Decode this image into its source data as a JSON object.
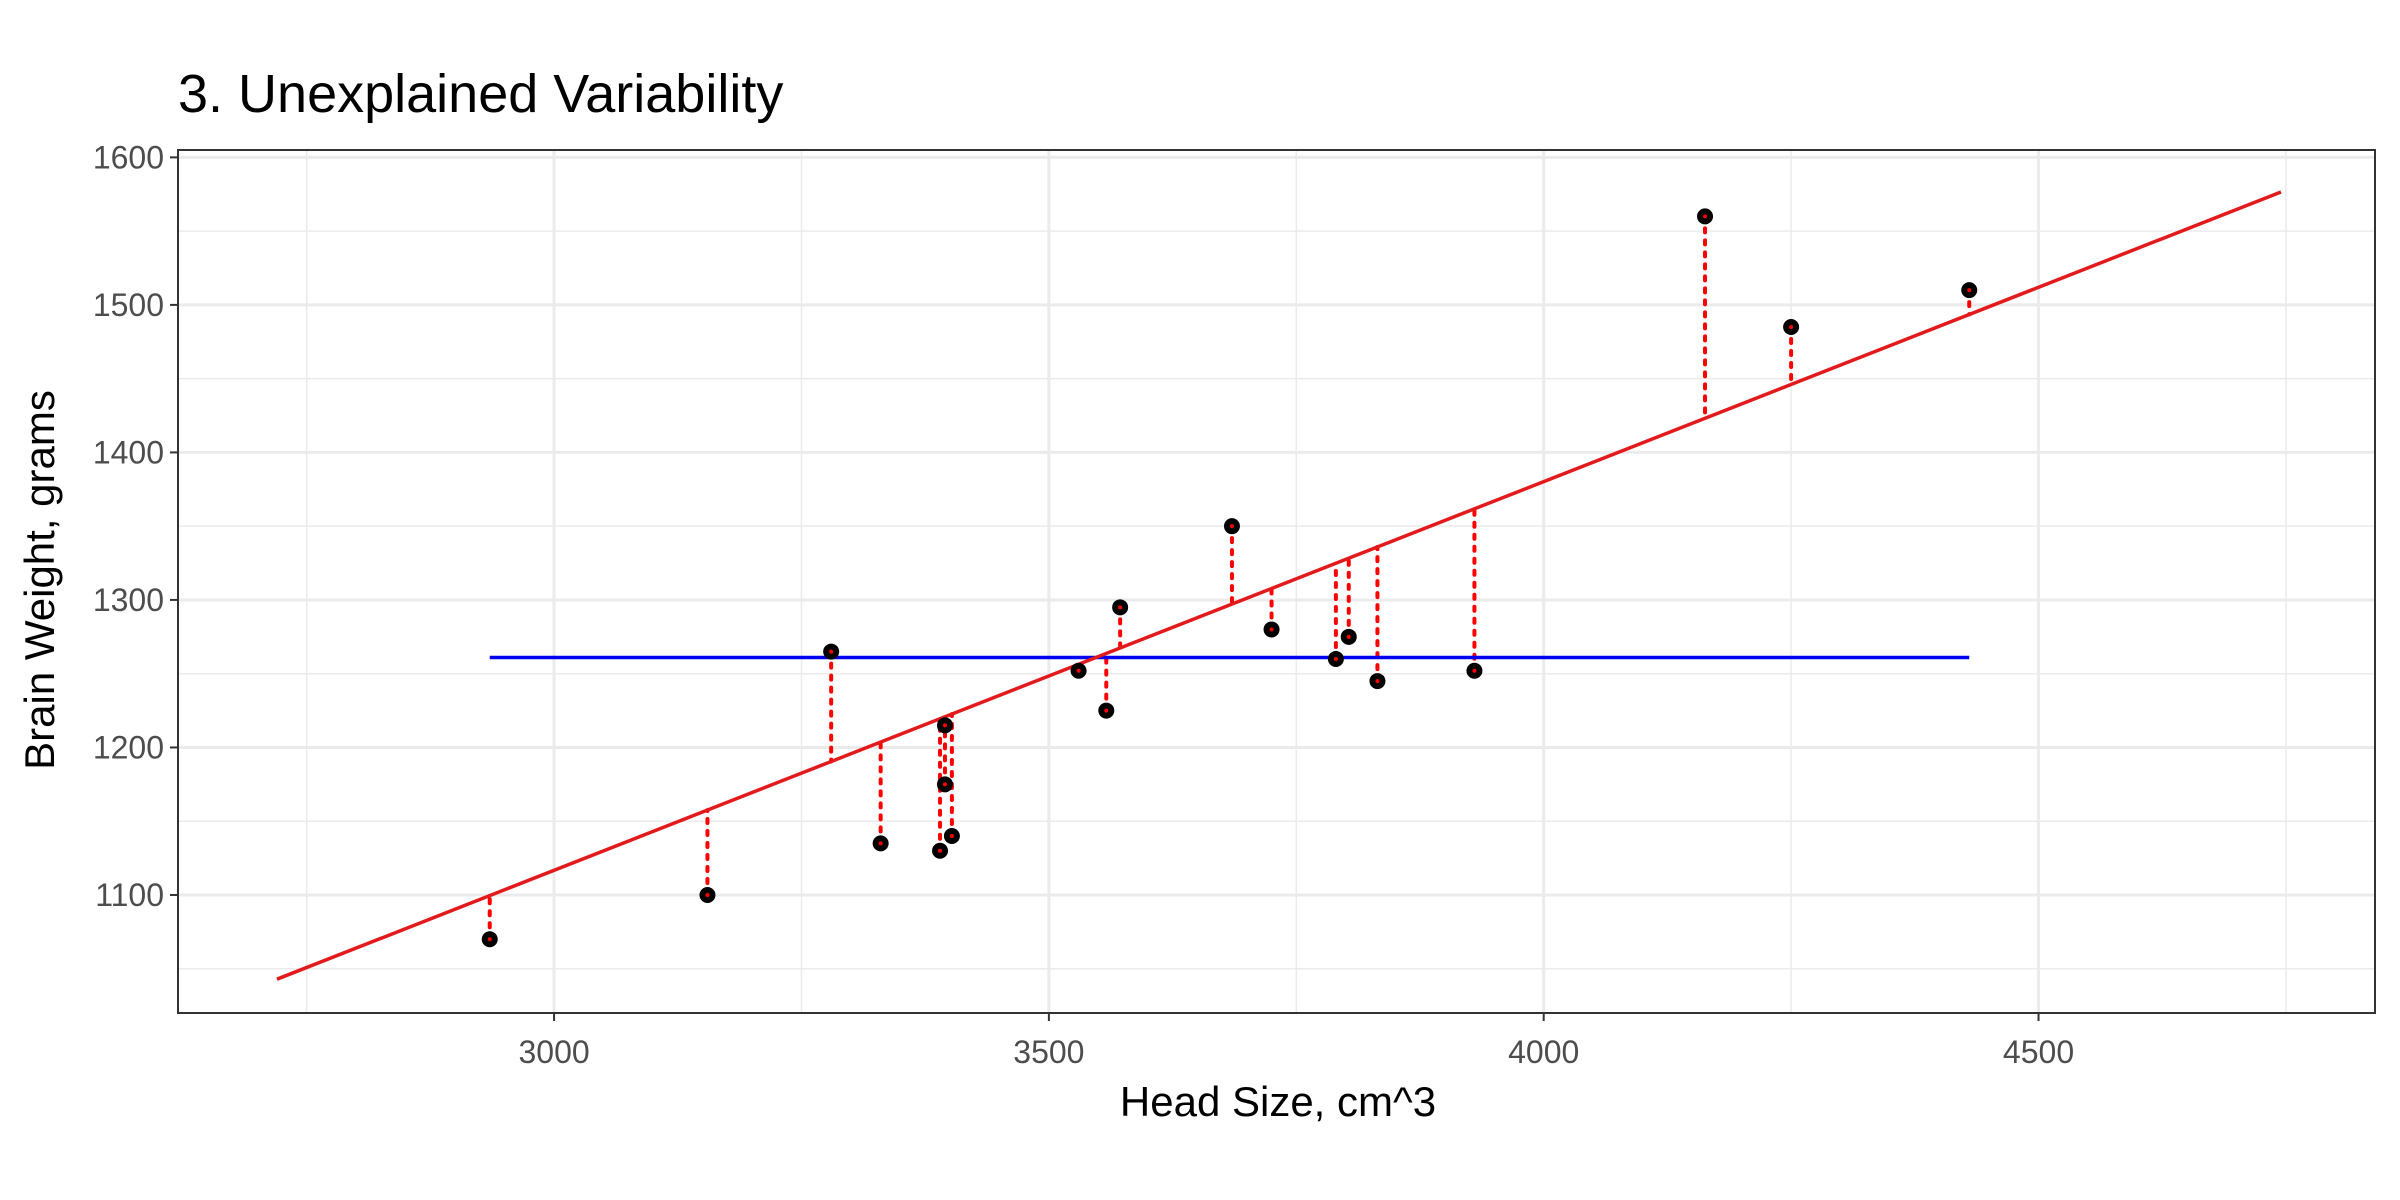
{
  "chart_data": {
    "type": "scatter",
    "title": "3. Unexplained Variability",
    "xlabel": "Head Size, cm^3",
    "ylabel": "Brain Weight, grams",
    "xlim": [
      2620,
      4840
    ],
    "ylim": [
      1020,
      1605
    ],
    "x_ticks": [
      3000,
      3500,
      4000,
      4500
    ],
    "x_minor_ticks": [
      2750,
      3250,
      3750,
      4250,
      4750
    ],
    "y_ticks": [
      1100,
      1200,
      1300,
      1400,
      1500,
      1600
    ],
    "y_minor_ticks": [
      1050,
      1150,
      1250,
      1350,
      1450,
      1550
    ],
    "grid": true,
    "points": [
      {
        "x": 2935,
        "y": 1070
      },
      {
        "x": 3155,
        "y": 1100
      },
      {
        "x": 3280,
        "y": 1265
      },
      {
        "x": 3330,
        "y": 1135
      },
      {
        "x": 3390,
        "y": 1130
      },
      {
        "x": 3395,
        "y": 1215
      },
      {
        "x": 3395,
        "y": 1175
      },
      {
        "x": 3402,
        "y": 1140
      },
      {
        "x": 3530,
        "y": 1252
      },
      {
        "x": 3558,
        "y": 1225
      },
      {
        "x": 3572,
        "y": 1295
      },
      {
        "x": 3685,
        "y": 1350
      },
      {
        "x": 3725,
        "y": 1280
      },
      {
        "x": 3790,
        "y": 1260
      },
      {
        "x": 3803,
        "y": 1275
      },
      {
        "x": 3832,
        "y": 1245
      },
      {
        "x": 3930,
        "y": 1252
      },
      {
        "x": 4163,
        "y": 1560
      },
      {
        "x": 4250,
        "y": 1485
      },
      {
        "x": 4430,
        "y": 1510
      }
    ],
    "regression_line": {
      "color": "#e31a1c",
      "slope": 0.2635,
      "intercept": 326.2,
      "x_range": [
        2720,
        4745
      ]
    },
    "mean_line": {
      "color": "#0000ee",
      "y": 1261,
      "x_range": [
        2935,
        4430
      ]
    },
    "point_color": "#000000",
    "residual_color": "#ff0000"
  }
}
